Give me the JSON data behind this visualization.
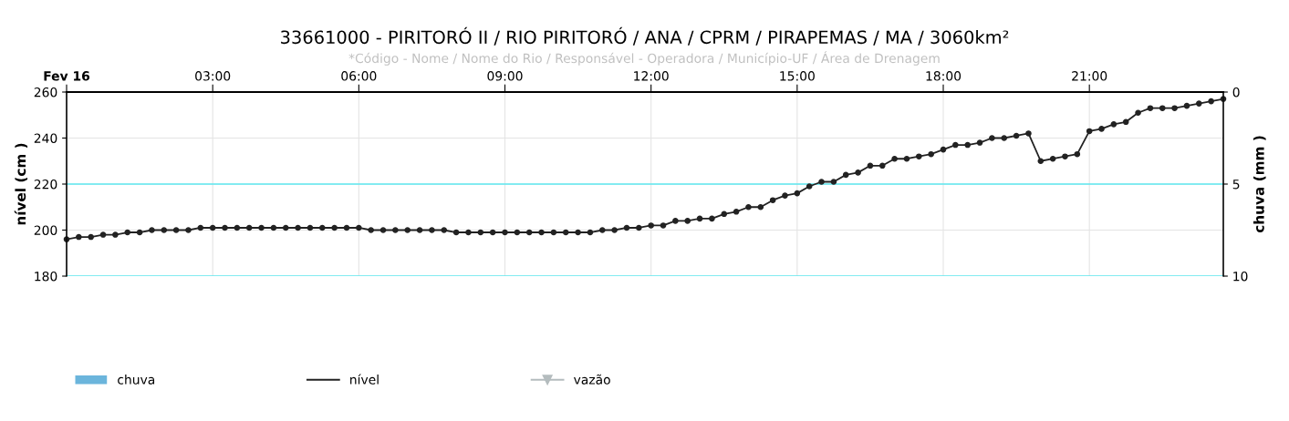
{
  "chart_data": {
    "type": "line",
    "title": "33661000 - PIRITORÓ II / RIO PIRITORÓ / ANA / CPRM / PIRAPEMAS / MA / 3060km²",
    "subtitle": "*Código - Nome / Nome do Rio / Responsável - Operadora / Município-UF / Área de Drenagem",
    "ylabel": "nível (cm )",
    "y2label": "chuva (mm )",
    "x": [
      0,
      0.25,
      0.5,
      0.75,
      1,
      1.25,
      1.5,
      1.75,
      2,
      2.25,
      2.5,
      2.75,
      3,
      3.25,
      3.5,
      3.75,
      4,
      4.25,
      4.5,
      4.75,
      5,
      5.25,
      5.5,
      5.75,
      6,
      6.25,
      6.5,
      6.75,
      7,
      7.25,
      7.5,
      7.75,
      8,
      8.25,
      8.5,
      8.75,
      9,
      9.25,
      9.5,
      9.75,
      10,
      10.25,
      10.5,
      10.75,
      11,
      11.25,
      11.5,
      11.75,
      12,
      12.25,
      12.5,
      12.75,
      13,
      13.25,
      13.5,
      13.75,
      14,
      14.25,
      14.5,
      14.75,
      15,
      15.25,
      15.5,
      15.75,
      16,
      16.25,
      16.5,
      16.75,
      17,
      17.25,
      17.5,
      17.75,
      18,
      18.25,
      18.5,
      18.75,
      19,
      19.25,
      19.5,
      19.75,
      20,
      20.25,
      20.5,
      20.75,
      21,
      21.25,
      21.5,
      21.75,
      22,
      22.25,
      22.5,
      22.75,
      23,
      23.25,
      23.5,
      23.75
    ],
    "series": [
      {
        "name": "chuva",
        "type": "bar",
        "color": "#6bb5dc",
        "values": [
          null,
          null,
          null,
          null,
          null,
          null,
          null,
          null,
          null,
          null,
          null,
          null,
          null,
          null,
          null,
          null,
          null,
          null,
          null,
          null,
          null,
          null,
          null,
          null,
          null,
          null,
          null,
          null,
          null,
          null,
          null,
          null,
          null,
          null,
          null,
          null,
          null,
          null,
          null,
          null,
          null,
          null,
          null,
          null,
          null,
          null,
          null,
          null,
          null,
          null,
          null,
          null,
          null,
          null,
          null,
          null,
          null,
          null,
          null,
          null,
          null,
          null,
          null,
          null,
          null,
          null,
          null,
          null,
          null,
          null,
          null,
          null,
          null,
          null,
          null,
          null,
          null,
          null,
          null,
          null,
          null,
          null,
          null,
          null,
          null,
          null,
          null,
          null,
          null,
          null,
          null,
          null,
          null,
          null,
          null,
          null
        ]
      },
      {
        "name": "nível",
        "color": "#222222",
        "marker": "circle",
        "values": [
          196,
          197,
          197,
          198,
          198,
          199,
          199,
          200,
          200,
          200,
          200,
          201,
          201,
          201,
          201,
          201,
          201,
          201,
          201,
          201,
          201,
          201,
          201,
          201,
          201,
          200,
          200,
          200,
          200,
          200,
          200,
          200,
          199,
          199,
          199,
          199,
          199,
          199,
          199,
          199,
          199,
          199,
          199,
          199,
          200,
          200,
          201,
          201,
          202,
          202,
          204,
          204,
          205,
          205,
          207,
          208,
          210,
          210,
          213,
          215,
          216,
          219,
          221,
          221,
          224,
          225,
          228,
          228,
          231,
          231,
          232,
          233,
          235,
          237,
          237,
          238,
          240,
          240,
          241,
          242,
          230,
          231,
          232,
          233,
          243,
          244,
          246,
          247,
          251,
          253,
          253,
          253,
          254,
          255,
          256,
          257
        ]
      },
      {
        "name": "vazão",
        "type": "line",
        "color": "#b4bcbe",
        "marker": "triangle",
        "values": [
          null,
          null,
          null,
          null,
          null,
          null,
          null,
          null,
          null,
          null,
          null,
          null,
          null,
          null,
          null,
          null,
          null,
          null,
          null,
          null,
          null,
          null,
          null,
          null,
          null,
          null,
          null,
          null,
          null,
          null,
          null,
          null,
          null,
          null,
          null,
          null,
          null,
          null,
          null,
          null,
          null,
          null,
          null,
          null,
          null,
          null,
          null,
          null,
          null,
          null,
          null,
          null,
          null,
          null,
          null,
          null,
          null,
          null,
          null,
          null,
          null,
          null,
          null,
          null,
          null,
          null,
          null,
          null,
          null,
          null,
          null,
          null,
          null,
          null,
          null,
          null,
          null,
          null,
          null,
          null,
          null,
          null,
          null,
          null,
          null,
          null,
          null,
          null,
          null,
          null,
          null,
          null,
          null,
          null,
          null,
          null
        ]
      }
    ],
    "xlim": [
      0,
      23.75
    ],
    "xticks": [
      {
        "value": 0,
        "label": "Fev 16"
      },
      {
        "value": 3,
        "label": "03:00"
      },
      {
        "value": 6,
        "label": "06:00"
      },
      {
        "value": 9,
        "label": "09:00"
      },
      {
        "value": 12,
        "label": "12:00"
      },
      {
        "value": 15,
        "label": "15:00"
      },
      {
        "value": 18,
        "label": "18:00"
      },
      {
        "value": 21,
        "label": "21:00"
      }
    ],
    "ylim": [
      180,
      260
    ],
    "yticks": [
      180,
      200,
      220,
      240,
      260
    ],
    "y2lim": [
      10,
      0
    ],
    "y2ticks": [
      0,
      5,
      10
    ],
    "ref_lines": [
      {
        "axis": "y",
        "value": 220,
        "label": null,
        "color": "#5ee8f0"
      },
      {
        "axis": "y",
        "value": 180,
        "label": null,
        "color": "#5ee8f0"
      }
    ],
    "grid": true,
    "legend": "bottom left",
    "line_style": "solid"
  }
}
